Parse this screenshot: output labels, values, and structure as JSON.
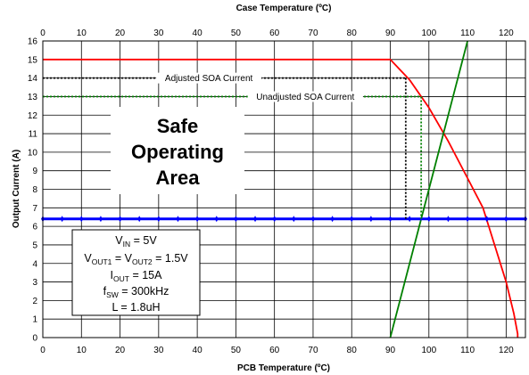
{
  "chart_data": {
    "type": "line",
    "title": "",
    "top_axis": {
      "label": "Case Temperature  (ºC)",
      "range": [
        0,
        125
      ],
      "ticks": [
        0,
        10,
        20,
        30,
        40,
        50,
        60,
        70,
        80,
        90,
        100,
        110,
        120
      ]
    },
    "x_axis": {
      "label": "PCB Temperature (ºC)",
      "range": [
        0,
        125
      ],
      "ticks": [
        0,
        10,
        20,
        30,
        40,
        50,
        60,
        70,
        80,
        90,
        100,
        110,
        120
      ]
    },
    "y_axis": {
      "label": "Output Current (A)",
      "range": [
        0,
        16
      ],
      "ticks": [
        0,
        1,
        2,
        3,
        4,
        5,
        6,
        7,
        8,
        9,
        10,
        11,
        12,
        13,
        14,
        15,
        16
      ]
    },
    "grid": true,
    "series": [
      {
        "color": "#ff0000",
        "points": [
          [
            0,
            15
          ],
          [
            90,
            15
          ],
          [
            95,
            13.9
          ],
          [
            100,
            12.4
          ],
          [
            105,
            10.6
          ],
          [
            110,
            8.6
          ],
          [
            114,
            7
          ],
          [
            117,
            5
          ],
          [
            120,
            3
          ],
          [
            122,
            1.3
          ],
          [
            123,
            0.2
          ],
          [
            123,
            0
          ]
        ]
      },
      {
        "color": "#008000",
        "points": [
          [
            90,
            0
          ],
          [
            110,
            16
          ]
        ]
      },
      {
        "color": "#0000ff",
        "marker": "diamond",
        "points": [
          [
            0,
            6.4
          ],
          [
            5,
            6.4
          ],
          [
            10,
            6.4
          ],
          [
            15,
            6.4
          ],
          [
            20,
            6.4
          ],
          [
            25,
            6.4
          ],
          [
            30,
            6.4
          ],
          [
            35,
            6.4
          ],
          [
            40,
            6.4
          ],
          [
            45,
            6.4
          ],
          [
            50,
            6.4
          ],
          [
            55,
            6.4
          ],
          [
            60,
            6.4
          ],
          [
            65,
            6.4
          ],
          [
            70,
            6.4
          ],
          [
            75,
            6.4
          ],
          [
            80,
            6.4
          ],
          [
            85,
            6.4
          ],
          [
            90,
            6.4
          ],
          [
            95,
            6.4
          ],
          [
            100,
            6.4
          ],
          [
            105,
            6.4
          ],
          [
            110,
            6.4
          ],
          [
            115,
            6.4
          ],
          [
            120,
            6.4
          ],
          [
            125,
            6.4
          ]
        ]
      }
    ],
    "annotations": [
      {
        "label": "Adjusted SOA Current",
        "color": "#000000",
        "horizontal": {
          "y": 14,
          "x_from": 0,
          "x_to": 94
        },
        "vertical": {
          "x": 94,
          "y_from": 14,
          "y_to": 6.4
        }
      },
      {
        "label": "Unadjusted SOA Current",
        "color": "#008000",
        "horizontal": {
          "y": 13,
          "x_from": 0,
          "x_to": 98
        },
        "vertical": {
          "x": 98,
          "y_from": 13,
          "y_to": 6.4
        }
      }
    ],
    "region_label": [
      "Safe",
      "Operating",
      "Area"
    ],
    "conditions": [
      {
        "main": "V",
        "sub": "IN",
        "rest": " = 5V"
      },
      {
        "main": "V",
        "sub": "OUT1",
        "rest": " = V",
        "sub2": "OUT2",
        "rest2": " = 1.5V"
      },
      {
        "main": "I",
        "sub": "OUT",
        "rest": " = 15A"
      },
      {
        "main": "f",
        "sub": "SW",
        "rest": " = 300kHz"
      },
      {
        "main": "L = 1.8uH"
      }
    ]
  }
}
